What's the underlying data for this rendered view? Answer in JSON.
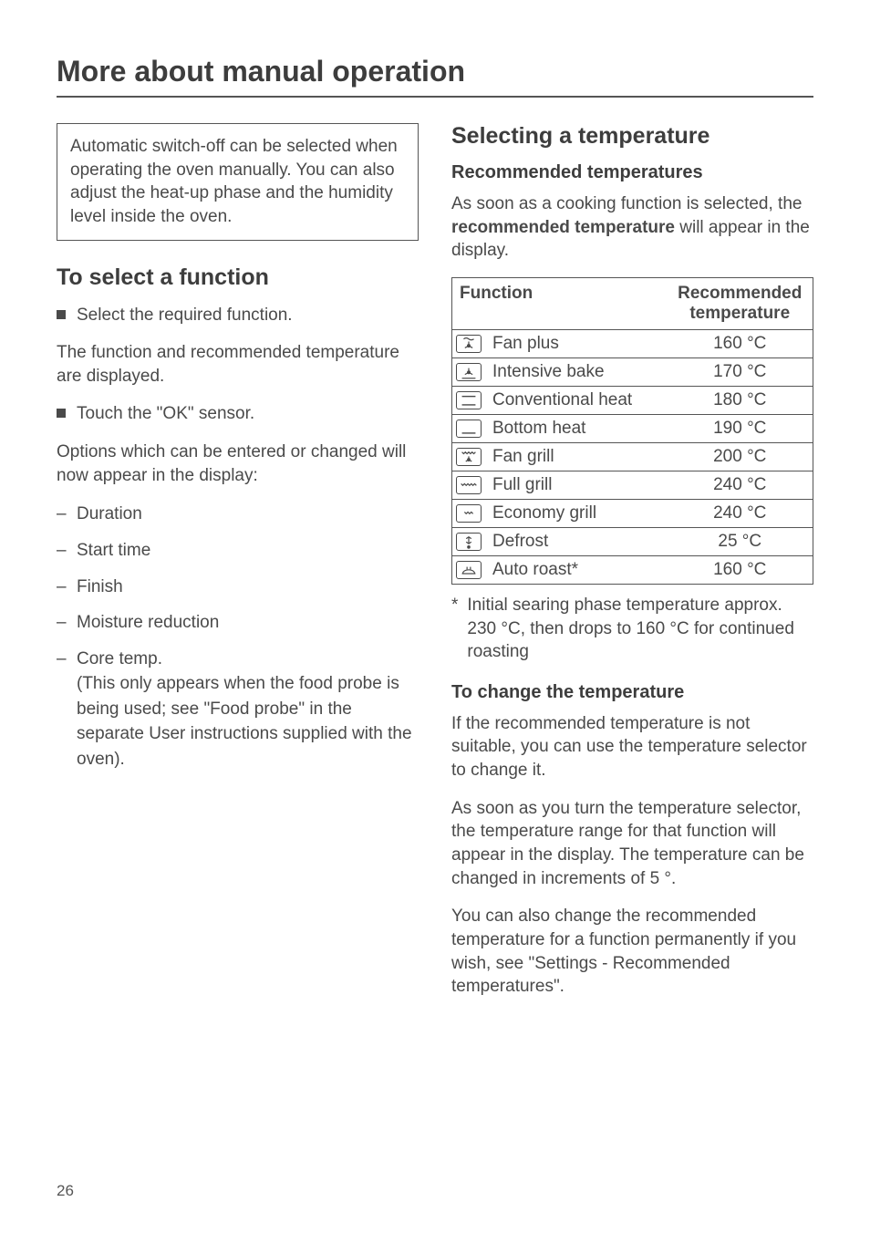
{
  "page_title": "More about manual operation",
  "info_box": "Automatic switch-off can be selected when operating the oven manually. You can also adjust the heat-up phase and the humidity level inside the oven.",
  "left": {
    "select_heading": "To select a function",
    "bullet_select": "Select the required function.",
    "para_displayed": "The function and recommended temperature are displayed.",
    "bullet_ok": "Touch the \"OK\" sensor.",
    "para_options": "Options which can be entered or changed will now appear in the display:",
    "options": [
      "Duration",
      "Start time",
      "Finish",
      "Moisture reduction",
      "Core temp.\n(This only appears when the food probe is being used; see \"Food probe\" in the separate User instructions supplied with the oven)."
    ]
  },
  "right": {
    "sel_temp_heading": "Selecting a temperature",
    "rec_heading": "Recommended temperatures",
    "rec_intro_pre": "As soon as a cooking function is selected, the ",
    "rec_intro_bold": "recommended temperature",
    "rec_intro_post": " will appear in the display.",
    "table": {
      "col_function": "Function",
      "col_temp": "Recommended temperature",
      "rows": [
        {
          "icon": "fan-plus",
          "name": "Fan plus",
          "temp": "160 °C"
        },
        {
          "icon": "intensive-bake",
          "name": "Intensive bake",
          "temp": "170 °C"
        },
        {
          "icon": "conventional",
          "name": "Conventional heat",
          "temp": "180 °C"
        },
        {
          "icon": "bottom-heat",
          "name": "Bottom heat",
          "temp": "190 °C"
        },
        {
          "icon": "fan-grill",
          "name": "Fan grill",
          "temp": "200 °C"
        },
        {
          "icon": "full-grill",
          "name": "Full grill",
          "temp": "240 °C"
        },
        {
          "icon": "economy-grill",
          "name": "Economy grill",
          "temp": "240 °C"
        },
        {
          "icon": "defrost",
          "name": "Defrost",
          "temp": "25  °C"
        },
        {
          "icon": "auto-roast",
          "name": "Auto roast*",
          "temp": "160 °C"
        }
      ]
    },
    "footnote_star": "*",
    "footnote_text": "Initial searing phase temperature approx. 230 °C, then drops to 160 °C for continued roasting",
    "change_heading": "To change the temperature",
    "change_p1": "If the recommended temperature is not suitable, you can use the temperature selector to change it.",
    "change_p2": "As soon as you turn the temperature selector, the temperature range for that function will appear in the display. The temperature can be changed in increments of 5 °.",
    "change_p3": "You can also change the recommended temperature for a function permanently if you wish, see \"Settings - Recommended temperatures\"."
  },
  "page_number": "26",
  "icon_svg": {
    "fan-plus": "<svg viewBox='0 0 28 20'><g stroke='#4a4a4a' stroke-width='1.3' fill='none'><circle cx='14' cy='12' r='1.5' fill='#4a4a4a'/><path d='M14 12 L14 7 M14 12 L9.5 14.5 M14 12 L18.5 14.5'/><path d='M8 4 C10 2.5 12 2.5 14 4 C16 5.5 18 5.5 20 4' /></g></svg>",
    "intensive-bake": "<svg viewBox='0 0 28 20'><g stroke='#4a4a4a' stroke-width='1.3' fill='none'><circle cx='14' cy='10' r='1.5' fill='#4a4a4a'/><path d='M14 10 L14 5 M14 10 L9.5 12.5 M14 10 L18.5 12.5'/><line x1='6' y1='17' x2='22' y2='17'/></g></svg>",
    "conventional": "<svg viewBox='0 0 28 20'><g stroke='#4a4a4a' stroke-width='1.5'><line x1='6' y1='5' x2='22' y2='5'/><line x1='6' y1='15' x2='22' y2='15'/></g></svg>",
    "bottom-heat": "<svg viewBox='0 0 28 20'><g stroke='#4a4a4a' stroke-width='1.5'><line x1='6' y1='15' x2='22' y2='15'/></g></svg>",
    "fan-grill": "<svg viewBox='0 0 28 20'><g stroke='#4a4a4a' stroke-width='1.3' fill='none'><path d='M6 4 L8 6 L10 4 L12 6 L14 4 L16 6 L18 4 L20 6 L22 4'/><circle cx='14' cy='13' r='1.4' fill='#4a4a4a'/><path d='M14 13 L14 9 M14 13 L10.5 15 M14 13 L17.5 15'/></g></svg>",
    "full-grill": "<svg viewBox='0 0 28 20'><g stroke='#4a4a4a' stroke-width='1.3' fill='none'><path d='M5 8 L7 10 L9 8 L11 10 L13 8 L15 10 L17 8 L19 10 L21 8 L23 10'/></g></svg>",
    "economy-grill": "<svg viewBox='0 0 28 20'><g stroke='#4a4a4a' stroke-width='1.3' fill='none'><path d='M9 8 L11 10 L13 8 L15 10 L17 8 L19 10'/></g></svg>",
    "defrost": "<svg viewBox='0 0 28 20'><g stroke='#4a4a4a' stroke-width='1.3' fill='none'><path d='M14 4 L14 12 M11 6 L14 4 L17 6 M11 10 L14 12 L17 10'/><circle cx='14' cy='16' r='1.3' fill='#4a4a4a'/></g></svg>",
    "auto-roast": "<svg viewBox='0 0 28 20'><g stroke='#4a4a4a' stroke-width='1.3' fill='none'><path d='M7 14 C7 8 21 8 21 14'/><line x1='6' y1='14' x2='22' y2='14'/><line x1='12' y1='6' x2='12' y2='9'/><line x1='16' y1='6' x2='16' y2='9'/></g></svg>"
  }
}
